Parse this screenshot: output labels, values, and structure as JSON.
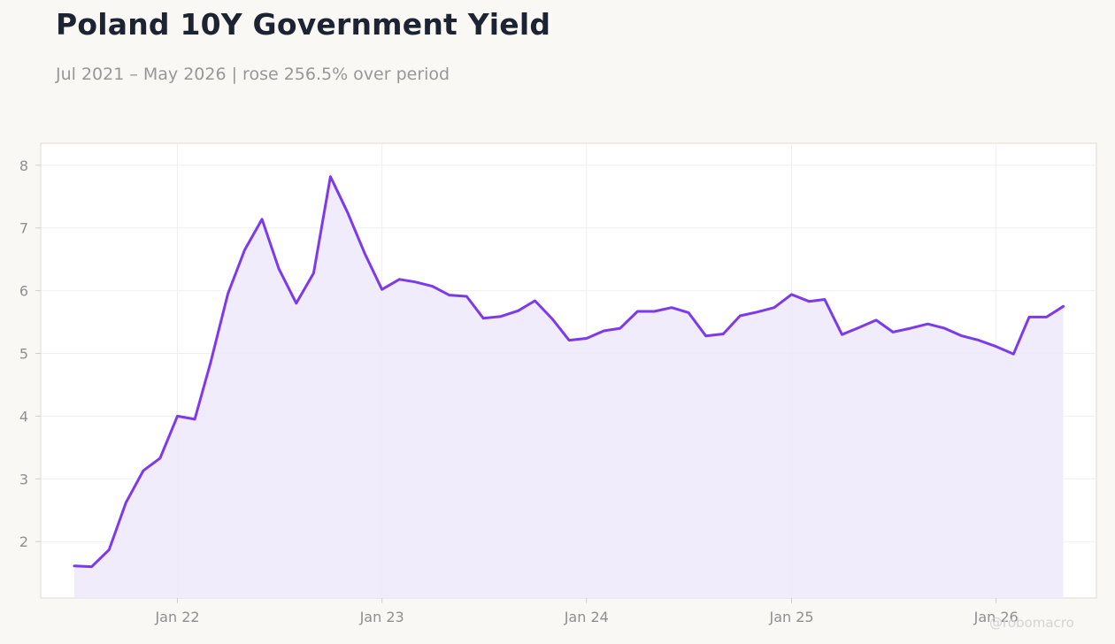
{
  "title": "Poland 10Y Government Yield",
  "subtitle": "Jul 2021 – May 2026 | rose 256.5% over period",
  "watermark": "@robomacro",
  "colors": {
    "line": "#7c3aed",
    "fill": "#efe9fb",
    "background": "#f9f8f5",
    "plot": "#ffffff"
  },
  "chart_data": {
    "type": "area",
    "title": "Poland 10Y Government Yield",
    "subtitle": "Jul 2021 – May 2026 | rose 256.5% over period",
    "xlabel": "",
    "ylabel": "",
    "ylim": [
      1.1,
      8.35
    ],
    "xlim": [
      "2021-05-02",
      "2026-06-29"
    ],
    "yticks": [
      2,
      3,
      4,
      5,
      6,
      7,
      8
    ],
    "xticks": [
      {
        "date": "2022-01-01",
        "label": "Jan 22"
      },
      {
        "date": "2023-01-01",
        "label": "Jan 23"
      },
      {
        "date": "2024-01-01",
        "label": "Jan 24"
      },
      {
        "date": "2025-01-01",
        "label": "Jan 25"
      },
      {
        "date": "2026-01-01",
        "label": "Jan 26"
      }
    ],
    "grid": true,
    "legend": "none",
    "series": [
      {
        "x": [
          "2021-07-01",
          "2021-08-01",
          "2021-09-01",
          "2021-10-01",
          "2021-11-01",
          "2021-12-01",
          "2022-01-01",
          "2022-02-01",
          "2022-03-01",
          "2022-04-01",
          "2022-05-01",
          "2022-06-01",
          "2022-07-01",
          "2022-08-01",
          "2022-09-01",
          "2022-10-01",
          "2022-11-01",
          "2022-12-01",
          "2023-01-01",
          "2023-02-01",
          "2023-03-01",
          "2023-04-01",
          "2023-05-01",
          "2023-06-01",
          "2023-07-01",
          "2023-08-01",
          "2023-09-01",
          "2023-10-01",
          "2023-11-01",
          "2023-12-01",
          "2024-01-01",
          "2024-02-01",
          "2024-03-01",
          "2024-04-01",
          "2024-05-01",
          "2024-06-01",
          "2024-07-01",
          "2024-08-01",
          "2024-09-01",
          "2024-10-01",
          "2024-11-01",
          "2024-12-01",
          "2025-01-01",
          "2025-02-01",
          "2025-03-01",
          "2025-04-01",
          "2025-05-01",
          "2025-06-01",
          "2025-07-01",
          "2025-08-01",
          "2025-09-01",
          "2025-10-01",
          "2025-11-01",
          "2025-12-01",
          "2026-01-01",
          "2026-02-01",
          "2026-03-01",
          "2026-04-01",
          "2026-05-01"
        ],
        "values": [
          1.61,
          1.6,
          1.87,
          2.62,
          3.13,
          3.33,
          4.0,
          3.95,
          4.85,
          5.95,
          6.65,
          7.14,
          6.35,
          5.8,
          6.28,
          7.82,
          7.24,
          6.6,
          6.02,
          6.18,
          6.14,
          6.07,
          5.93,
          5.91,
          5.56,
          5.59,
          5.68,
          5.84,
          5.55,
          5.21,
          5.24,
          5.36,
          5.4,
          5.67,
          5.67,
          5.73,
          5.65,
          5.28,
          5.31,
          5.6,
          5.66,
          5.73,
          5.94,
          5.83,
          5.86,
          5.3,
          5.41,
          5.53,
          5.34,
          5.4,
          5.47,
          5.4,
          5.28,
          5.21,
          5.11,
          4.99,
          5.58,
          5.58,
          5.75
        ]
      }
    ]
  }
}
